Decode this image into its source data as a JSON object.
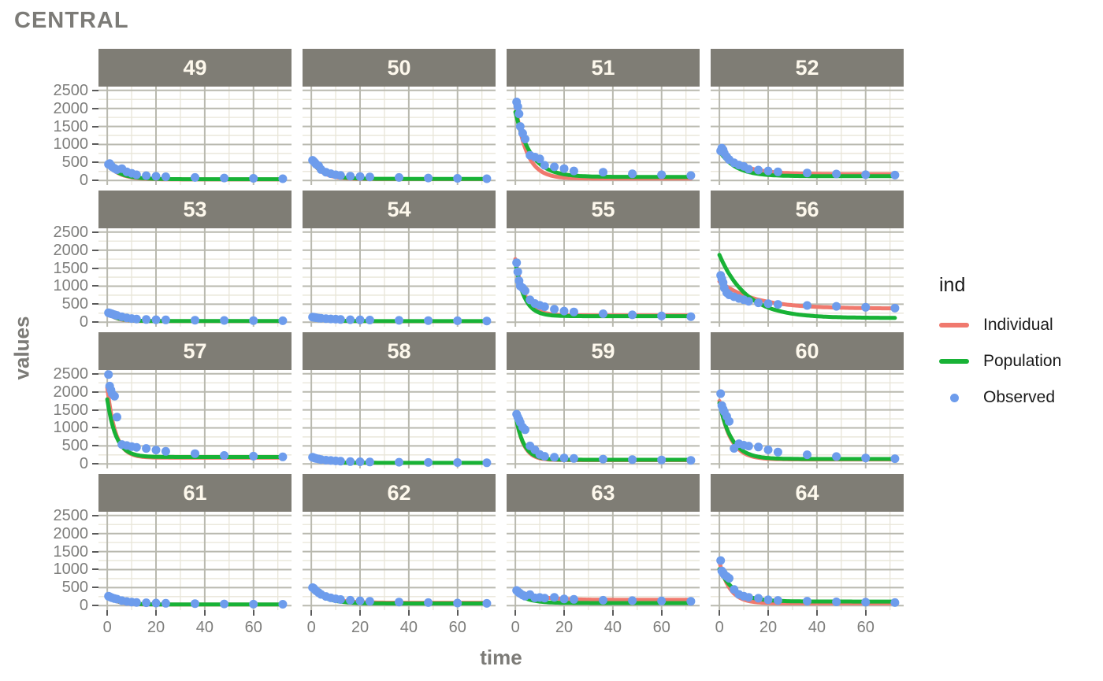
{
  "title": "CENTRAL",
  "x_axis": {
    "label": "time",
    "ticks": [
      "0",
      "20",
      "40",
      "60"
    ]
  },
  "y_axis": {
    "label": "values",
    "ticks": [
      "2500",
      "2000",
      "1500",
      "1000",
      "500",
      "0"
    ]
  },
  "legend": {
    "title": "ind",
    "items": [
      {
        "label": "Individual",
        "type": "line",
        "color": "#f0796e"
      },
      {
        "label": "Population",
        "type": "line",
        "color": "#18b236"
      },
      {
        "label": "Observed",
        "type": "point",
        "color": "#6d9cec"
      }
    ]
  },
  "styles": {
    "strip_bg": "#7f7d75",
    "strip_text": "#fdf8ec",
    "grid_major": "#b9b9af",
    "grid_minor": "#e8e5d8",
    "text_gray": "#7e7e7c",
    "tick_color": "#5a5a5a",
    "individual": "#f0796e",
    "population": "#18b236",
    "observed": "#6d9cec"
  },
  "chart_data": {
    "type": "line",
    "subtype": "faceted scatter + fitted curves",
    "title": "CENTRAL",
    "xlabel": "time",
    "ylabel": "values",
    "legend_position": "right",
    "grid": true,
    "xlim": [
      -3.6,
      75.6
    ],
    "ylim": [
      -125,
      2605
    ],
    "x_ticks": [
      0,
      20,
      40,
      60
    ],
    "y_ticks": [
      0,
      500,
      1000,
      1500,
      2000,
      2500
    ],
    "x_minor": [
      10,
      30,
      50,
      70
    ],
    "y_minor": [
      250,
      750,
      1250,
      1750,
      2250
    ],
    "curve_model": "y = A*exp(-k*t) + C",
    "times": [
      0.5,
      1,
      1.5,
      2,
      3,
      4,
      6,
      8,
      10,
      12,
      16,
      20,
      24,
      36,
      48,
      60,
      72
    ],
    "facets": [
      {
        "label": "49",
        "observed": [
          450,
          470,
          420,
          380,
          335,
          300,
          330,
          240,
          200,
          160,
          135,
          118,
          105,
          85,
          70,
          60,
          50
        ],
        "individual": {
          "A": 430,
          "k": 0.2,
          "C": 30
        },
        "population": {
          "A": 410,
          "k": 0.18,
          "C": 36
        }
      },
      {
        "label": "50",
        "observed": [
          560,
          530,
          490,
          450,
          410,
          305,
          230,
          190,
          160,
          142,
          122,
          110,
          100,
          85,
          70,
          60,
          50
        ],
        "individual": {
          "A": 520,
          "k": 0.22,
          "C": 38
        },
        "population": {
          "A": 500,
          "k": 0.2,
          "C": 46
        }
      },
      {
        "label": "51",
        "observed": [
          2180,
          2050,
          1850,
          1500,
          1310,
          1150,
          700,
          650,
          600,
          420,
          380,
          330,
          265,
          230,
          185,
          160,
          140
        ],
        "individual": {
          "A": 2050,
          "k": 0.22,
          "C": 55
        },
        "population": {
          "A": 1800,
          "k": 0.16,
          "C": 100
        }
      },
      {
        "label": "52",
        "observed": [
          820,
          900,
          850,
          760,
          660,
          580,
          490,
          430,
          390,
          315,
          290,
          265,
          240,
          210,
          180,
          162,
          150
        ],
        "individual": {
          "A": 660,
          "k": 0.11,
          "C": 175
        },
        "population": {
          "A": 700,
          "k": 0.15,
          "C": 120
        }
      },
      {
        "label": "53",
        "observed": [
          262,
          250,
          240,
          228,
          210,
          190,
          150,
          122,
          102,
          88,
          76,
          70,
          65,
          56,
          50,
          45,
          40
        ],
        "individual": {
          "A": 235,
          "k": 0.27,
          "C": 28
        },
        "population": {
          "A": 225,
          "k": 0.25,
          "C": 32
        }
      },
      {
        "label": "54",
        "observed": [
          142,
          136,
          130,
          126,
          116,
          110,
          100,
          92,
          85,
          76,
          70,
          65,
          60,
          52,
          46,
          40,
          35
        ],
        "individual": {
          "A": 118,
          "k": 0.22,
          "C": 26
        },
        "population": {
          "A": 112,
          "k": 0.2,
          "C": 30
        }
      },
      {
        "label": "55",
        "observed": [
          1650,
          1400,
          1150,
          1005,
          950,
          870,
          620,
          520,
          470,
          430,
          360,
          310,
          285,
          235,
          205,
          175,
          155
        ],
        "individual": {
          "A": 1560,
          "k": 0.26,
          "C": 190
        },
        "population": {
          "A": 1500,
          "k": 0.28,
          "C": 168
        }
      },
      {
        "label": "56",
        "observed": [
          1300,
          1200,
          1100,
          950,
          820,
          760,
          705,
          660,
          625,
          580,
          540,
          515,
          495,
          465,
          440,
          415,
          390
        ],
        "individual": {
          "A": 750,
          "k": 0.07,
          "C": 380
        },
        "population": {
          "A": 1750,
          "k": 0.09,
          "C": 118
        }
      },
      {
        "label": "57",
        "observed": [
          2480,
          2160,
          2050,
          1950,
          1880,
          1300,
          540,
          510,
          480,
          460,
          430,
          385,
          350,
          285,
          235,
          215,
          195
        ],
        "individual": {
          "A": 1950,
          "k": 0.3,
          "C": 172
        },
        "population": {
          "A": 1600,
          "k": 0.28,
          "C": 192
        }
      },
      {
        "label": "58",
        "observed": [
          185,
          172,
          160,
          150,
          136,
          122,
          105,
          95,
          85,
          76,
          66,
          60,
          55,
          48,
          42,
          38,
          33
        ],
        "individual": {
          "A": 142,
          "k": 0.28,
          "C": 27
        },
        "population": {
          "A": 132,
          "k": 0.25,
          "C": 31
        }
      },
      {
        "label": "59",
        "observed": [
          1380,
          1300,
          1230,
          1150,
          1020,
          950,
          500,
          390,
          262,
          212,
          186,
          165,
          152,
          135,
          120,
          110,
          100
        ],
        "individual": {
          "A": 1300,
          "k": 0.32,
          "C": 104
        },
        "population": {
          "A": 1250,
          "k": 0.3,
          "C": 116
        }
      },
      {
        "label": "60",
        "observed": [
          1950,
          1620,
          1520,
          1450,
          1320,
          1180,
          432,
          560,
          520,
          495,
          470,
          390,
          330,
          255,
          205,
          165,
          145
        ],
        "individual": {
          "A": 1620,
          "k": 0.22,
          "C": 124
        },
        "population": {
          "A": 1550,
          "k": 0.2,
          "C": 136
        }
      },
      {
        "label": "61",
        "observed": [
          262,
          246,
          230,
          216,
          196,
          180,
          140,
          116,
          101,
          90,
          80,
          72,
          66,
          56,
          48,
          42,
          38
        ],
        "individual": {
          "A": 232,
          "k": 0.24,
          "C": 29
        },
        "population": {
          "A": 222,
          "k": 0.22,
          "C": 33
        }
      },
      {
        "label": "62",
        "observed": [
          500,
          480,
          440,
          410,
          360,
          312,
          255,
          215,
          190,
          170,
          150,
          135,
          122,
          100,
          85,
          72,
          62
        ],
        "individual": {
          "A": 420,
          "k": 0.16,
          "C": 80
        },
        "population": {
          "A": 432,
          "k": 0.18,
          "C": 60
        }
      },
      {
        "label": "63",
        "observed": [
          420,
          390,
          360,
          335,
          292,
          262,
          305,
          215,
          226,
          210,
          232,
          186,
          175,
          150,
          140,
          130,
          120
        ],
        "individual": {
          "A": 280,
          "k": 0.12,
          "C": 160
        },
        "population": {
          "A": 300,
          "k": 0.2,
          "C": 72
        }
      },
      {
        "label": "64",
        "observed": [
          1250,
          960,
          912,
          860,
          810,
          760,
          450,
          312,
          262,
          232,
          205,
          162,
          145,
          125,
          105,
          95,
          85
        ],
        "individual": {
          "A": 1150,
          "k": 0.24,
          "C": 64
        },
        "population": {
          "A": 900,
          "k": 0.16,
          "C": 114
        }
      }
    ]
  }
}
